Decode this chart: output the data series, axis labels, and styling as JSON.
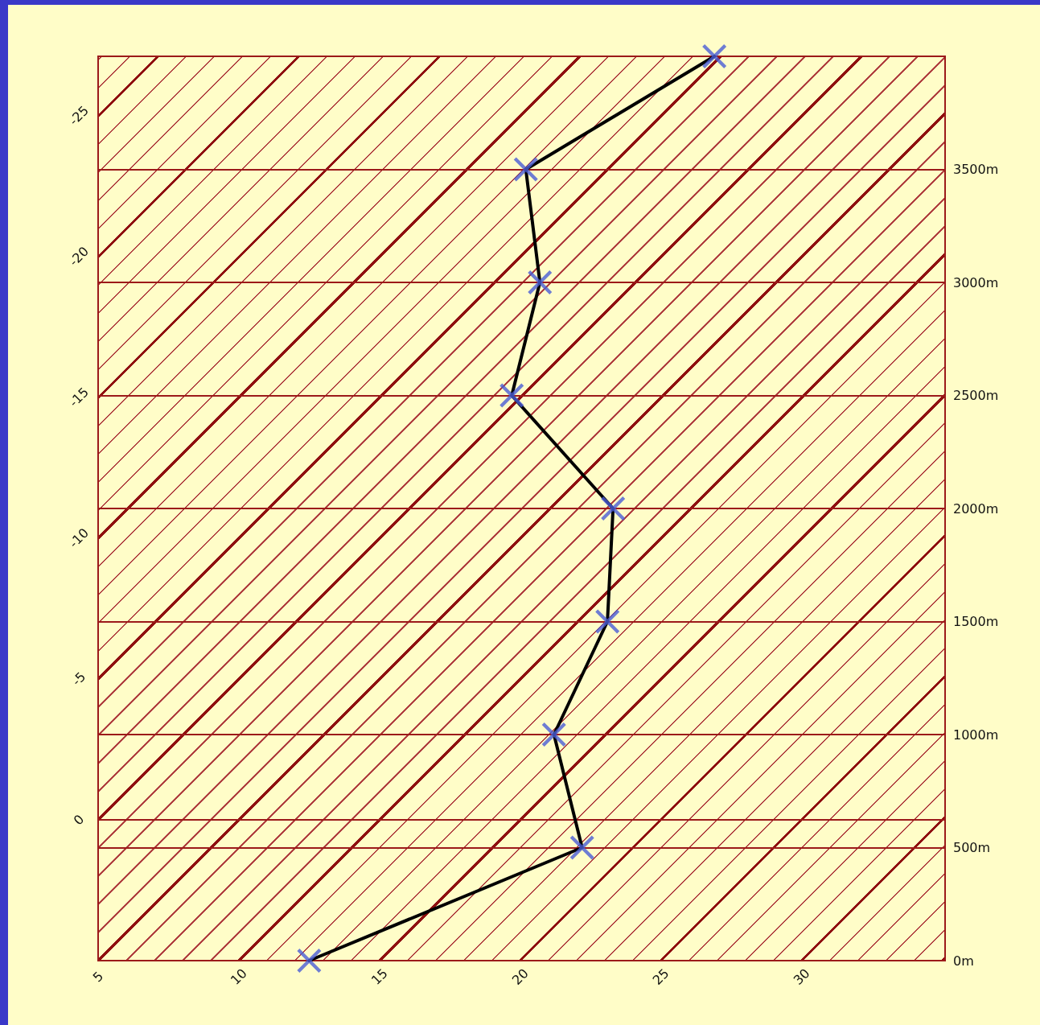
{
  "chart_data": {
    "type": "line",
    "xlim": [
      5,
      35.1
    ],
    "xticks": [
      5,
      10,
      15,
      20,
      25,
      30
    ],
    "ylim": [
      5,
      -27.1
    ],
    "yticks": [
      0,
      -5,
      -10,
      -15,
      -20,
      -25
    ],
    "y2lim": [
      0,
      4000
    ],
    "y2ticks": [
      {
        "value": 0,
        "label": "0m"
      },
      {
        "value": 500,
        "label": "500m"
      },
      {
        "value": 1000,
        "label": "1000m"
      },
      {
        "value": 1500,
        "label": "1500m"
      },
      {
        "value": 2000,
        "label": "2000m"
      },
      {
        "value": 2500,
        "label": "2500m"
      },
      {
        "value": 3000,
        "label": "3000m"
      },
      {
        "value": 3500,
        "label": "3500m"
      }
    ],
    "grid": "y2",
    "series": [
      {
        "type": "line",
        "axis": "y2",
        "color": "#000000",
        "marker": "none",
        "line_style": "solid",
        "x": [
          12.5,
          22.2,
          21.2,
          23.1,
          23.3,
          19.7,
          20.7,
          20.2,
          26.9
        ],
        "values": [
          0,
          500,
          1000,
          1500,
          2000,
          2500,
          3000,
          3500,
          4000
        ]
      },
      {
        "type": "scatter",
        "axis": "y2",
        "color": "#4a5cd6",
        "marker": "cross",
        "x": [
          12.5,
          22.2,
          21.2,
          23.1,
          23.3,
          19.7,
          20.7,
          20.2,
          26.9
        ],
        "values": [
          0,
          500,
          1000,
          1500,
          2000,
          2500,
          3000,
          3500,
          4000
        ]
      }
    ]
  }
}
